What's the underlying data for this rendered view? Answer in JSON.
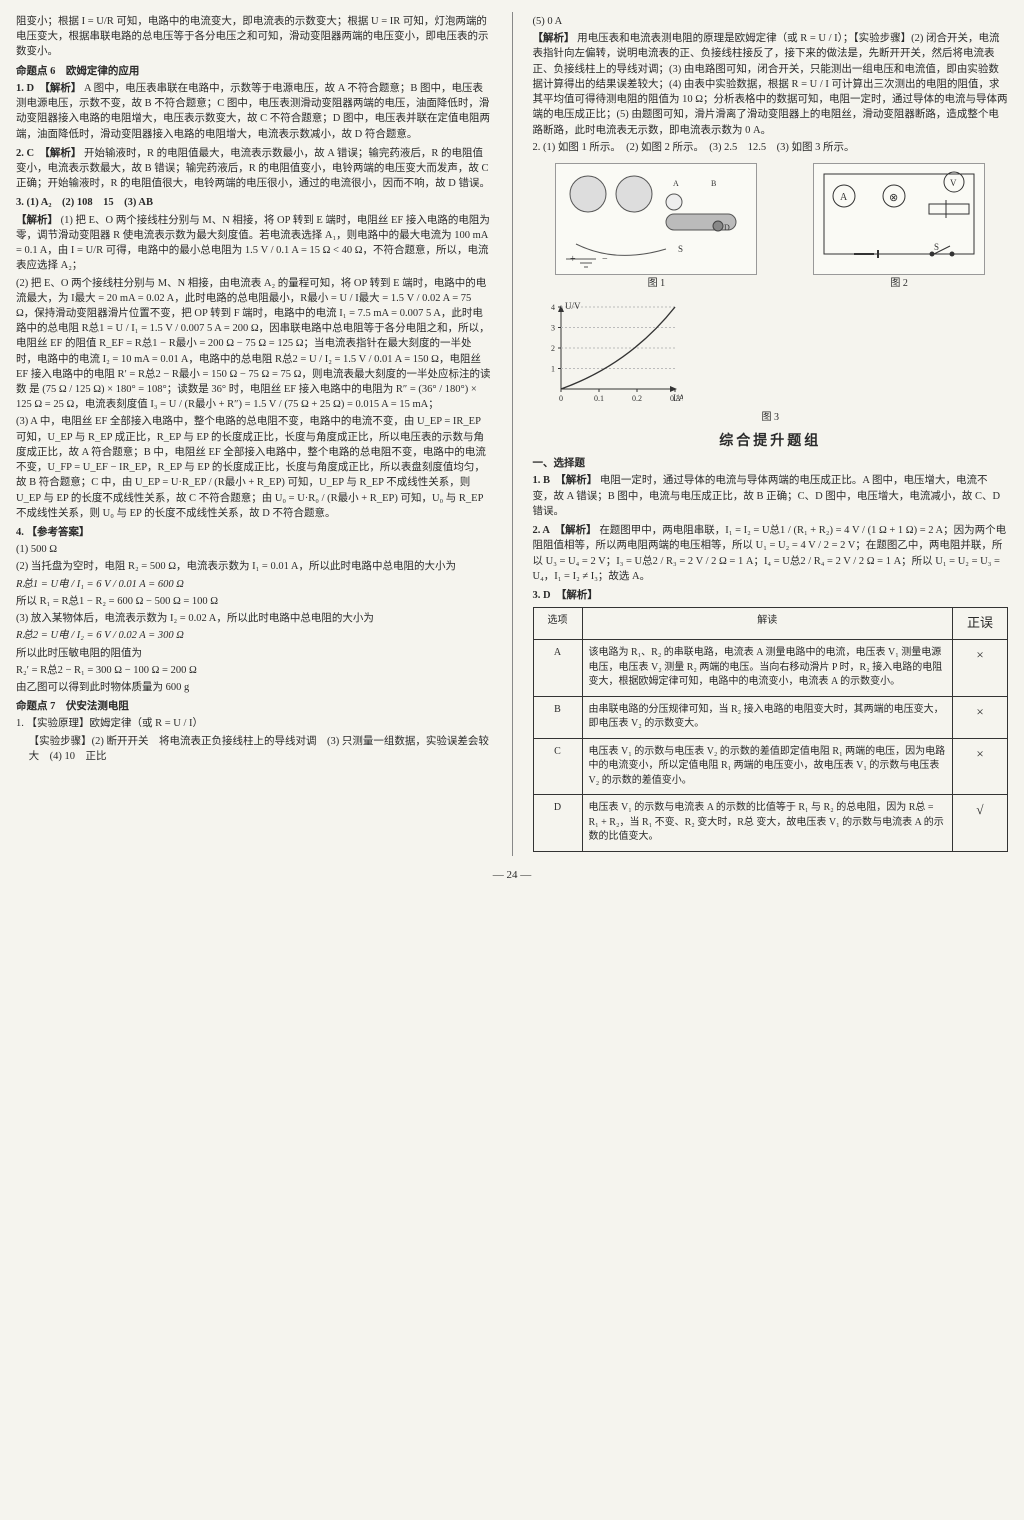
{
  "left": {
    "intro": "阻变小；根据 I = U/R 可知，电路中的电流变大，即电流表的示数变大；根据 U = IR 可知，灯泡两端的电压变大，根据串联电路的总电压等于各分电压之和可知，滑动变阻器两端的电压变小，即电压表的示数变小。",
    "topic6": "命题点 6　欧姆定律的应用",
    "q1_head": "1. D　【解析】",
    "q1_body": "A 图中，电压表串联在电路中，示数等于电源电压，故 A 不符合题意；B 图中，电压表测电源电压，示数不变，故 B 不符合题意；C 图中，电压表测滑动变阻器两端的电压，油面降低时，滑动变阻器接入电路的电阻增大，电压表示数变大，故 C 不符合题意；D 图中，电压表并联在定值电阻两端，油面降低时，滑动变阻器接入电路的电阻增大，电流表示数减小，故 D 符合题意。",
    "q2_head": "2. C　【解析】",
    "q2_body": "开始输液时，R 的电阻值最大，电流表示数最小，故 A 错误；输完药液后，R 的电阻值变小，电流表示数最大，故 B 错误；输完药液后，R 的电阻值变小，电铃两端的电压变大而发声，故 C 正确；开始输液时，R 的电阻值很大，电铃两端的电压很小，通过的电流很小，因而不响，故 D 错误。",
    "q3_head": "3. (1) A₂　(2) 108　15　(3) AB",
    "q3_expl_label": "【解析】",
    "q3_p1": "(1) 把 E、O 两个接线柱分别与 M、N 相接，将 OP 转到 E 端时，电阻丝 EF 接入电路的电阻为零，调节滑动变阻器 R 使电流表示数为最大刻度值。若电流表选择 A₁，则电路中的最大电流为 100 mA = 0.1 A，由 I = U/R 可得，电路中的最小总电阻为 1.5 V / 0.1 A = 15 Ω < 40 Ω，不符合题意，所以，电流表应选择 A₂；",
    "q3_p2": "(2) 把 E、O 两个接线柱分别与 M、N 相接，由电流表 A₂ 的量程可知，将 OP 转到 E 端时，电路中的电流最大，为 I最大 = 20 mA = 0.02 A，此时电路的总电阻最小，R最小 = U / I最大 = 1.5 V / 0.02 A = 75 Ω，保持滑动变阻器滑片位置不变，把 OP 转到 F 端时，电路中的电流 I₁ = 7.5 mA = 0.007 5 A，此时电路中的总电阻 R总1 = U / I₁ = 1.5 V / 0.007 5 A = 200 Ω，因串联电路中总电阻等于各分电阻之和，所以，电阻丝 EF 的阻值 R_EF = R总1 − R最小 = 200 Ω − 75 Ω = 125 Ω；当电流表指针在最大刻度的一半处时，电路中的电流 I₂ = 10 mA = 0.01 A，电路中的总电阻 R总2 = U / I₂ = 1.5 V / 0.01 A = 150 Ω，电阻丝 EF 接入电路中的电阻 R′ = R总2 − R最小 = 150 Ω − 75 Ω = 75 Ω，则电流表最大刻度的一半处应标注的读数 是 (75 Ω / 125 Ω) × 180° = 108°；读数是 36° 时，电阻丝 EF 接入电路中的电阻为 R″ = (36° / 180°) × 125 Ω = 25 Ω，电流表刻度值 I₃ = U / (R最小 + R″) = 1.5 V / (75 Ω + 25 Ω) = 0.015 A = 15 mA；",
    "q3_p3": "(3) A 中，电阻丝 EF 全部接入电路中，整个电路的总电阻不变，电路中的电流不变，由 U_EP = IR_EP 可知，U_EP 与 R_EP 成正比，R_EP 与 EP 的长度成正比，长度与角度成正比，所以电压表的示数与角度成正比，故 A 符合题意；B 中，电阻丝 EF 全部接入电路中，整个电路的总电阻不变，电路中的电流不变，U_FP = U_EF − IR_EP，R_EP 与 EP 的长度成正比，长度与角度成正比，所以表盘刻度值均匀，故 B 符合题意；C 中，由 U_EP = U·R_EP / (R最小 + R_EP) 可知，U_EP 与 R_EP 不成线性关系，则 U_EP 与 EP 的长度不成线性关系，故 C 不符合题意；由 U₀ = U·R₀ / (R最小 + R_EP) 可知，U₀ 与 R_EP 不成线性关系，则 U₀ 与 EP 的长度不成线性关系，故 D 不符合题意。",
    "q4_head": "4. 【参考答案】",
    "q4_1": "(1) 500 Ω",
    "q4_2": "(2) 当托盘为空时，电阻 R₂ = 500 Ω，电流表示数为 I₁ = 0.01 A，所以此时电路中总电阻的大小为",
    "q4_2f": "R总1 = U电 / I₁ = 6 V / 0.01 A = 600 Ω",
    "q4_2b": "所以 R₁ = R总1 − R₂ = 600 Ω − 500 Ω = 100 Ω",
    "q4_3": "(3) 放入某物体后，电流表示数为 I₂ = 0.02 A，所以此时电路中总电阻的大小为",
    "q4_3f": "R总2 = U电 / I₂ = 6 V / 0.02 A = 300 Ω",
    "q4_3b": "所以此时压敏电阻的阻值为",
    "q4_3c": "R₂′ = R总2 − R₁ = 300 Ω − 100 Ω = 200 Ω",
    "q4_3d": "由乙图可以得到此时物体质量为 600 g",
    "topic7": "命题点 7　伏安法测电阻",
    "q7_1": "1. 【实验原理】欧姆定律（或 R = U / I）",
    "q7_2": "【实验步骤】(2) 断开开关　将电流表正负接线柱上的导线对调　(3) 只测量一组数据，实验误差会较大　(4) 10　正比"
  },
  "right": {
    "r0": "(5) 0 A",
    "r_expl_label": "【解析】",
    "r_expl": "用电压表和电流表测电阻的原理是欧姆定律（或 R = U / I）；【实验步骤】(2) 闭合开关，电流表指针向左偏转，说明电流表的正、负接线柱接反了，接下来的做法是，先断开开关，然后将电流表正、负接线柱上的导线对调；(3) 由电路图可知，闭合开关，只能测出一组电压和电流值，即由实验数据计算得出的结果误差较大；(4) 由表中实验数据，根据 R = U / I 可计算出三次测出的电阻的阻值，求其平均值可得待测电阻的阻值为 10 Ω；分析表格中的数据可知，电阻一定时，通过导体的电流与导体两端的电压成正比；(5) 由题图可知，滑片滑离了滑动变阻器上的电阻丝，滑动变阻器断路，造成整个电路断路，此时电流表无示数，即电流表示数为 0 A。",
    "q2": "2. (1) 如图 1 所示。　(2) 如图 2 所示。　(3) 2.5　12.5　(3) 如图 3 所示。",
    "fig1_cap": "图 1",
    "fig2_cap": "图 2",
    "fig3_cap": "图 3",
    "chart": {
      "type": "line",
      "xlabel": "I/A",
      "ylabel": "U/V",
      "xticks": [
        0,
        0.1,
        0.2,
        0.3
      ],
      "yticks": [
        0,
        1,
        2,
        3,
        4
      ],
      "points_x": [
        0,
        0.1,
        0.2,
        0.3
      ],
      "points_y": [
        0,
        1.0,
        2.2,
        4.0
      ],
      "line_color": "#333333",
      "axis_color": "#333333",
      "bg_color": "#f5f4ee",
      "fontsize": 8
    },
    "comp_title": "综合提升题组",
    "sec_choice": "一、选择题",
    "c1_head": "1. B　【解析】",
    "c1_body": "电阻一定时，通过导体的电流与导体两端的电压成正比。A 图中，电压增大，电流不变，故 A 错误；B 图中，电流与电压成正比，故 B 正确；C、D 图中，电压增大，电流减小，故 C、D 错误。",
    "c2_head": "2. A　【解析】",
    "c2_body": "在题图甲中，两电阻串联，I₁ = I₂ = U总1 / (R₁ + R₂) = 4 V / (1 Ω + 1 Ω) = 2 A；因为两个电阻阻值相等，所以两电阻两端的电压相等，所以 U₁ = U₂ = 4 V / 2 = 2 V；在题图乙中，两电阻并联，所以 U₃ = U₄ = 2 V；I₃ = U总2 / R₃ = 2 V / 2 Ω = 1 A；I₄ = U总2 / R₄ = 2 V / 2 Ω = 1 A；所以 U₁ = U₂ = U₃ = U₄，I₁ = I₂ ≠ I₃；故选 A。",
    "c3_head": "3. D　【解析】",
    "table": {
      "headers": [
        "选项",
        "解读",
        "正误"
      ],
      "rows": [
        {
          "opt": "A",
          "text": "该电路为 R₁、R₂ 的串联电路，电流表 A 测量电路中的电流，电压表 V₁ 测量电源电压，电压表 V₂ 测量 R₂ 两端的电压。当向右移动滑片 P 时，R₂ 接入电路的电阻变大，根据欧姆定律可知，电路中的电流变小，电流表 A 的示数变小。",
          "mark": "×"
        },
        {
          "opt": "B",
          "text": "由串联电路的分压规律可知，当 R₂ 接入电路的电阻变大时，其两端的电压变大，即电压表 V₂ 的示数变大。",
          "mark": "×"
        },
        {
          "opt": "C",
          "text": "电压表 V₁ 的示数与电压表 V₂ 的示数的差值即定值电阻 R₁ 两端的电压，因为电路中的电流变小，所以定值电阻 R₁ 两端的电压变小，故电压表 V₁ 的示数与电压表 V₂ 的示数的差值变小。",
          "mark": "×"
        },
        {
          "opt": "D",
          "text": "电压表 V₁ 的示数与电流表 A 的示数的比值等于 R₁ 与 R₂ 的总电阻，因为 R总 = R₁ + R₂，当 R₁ 不变、R₂ 变大时，R总 变大，故电压表 V₁ 的示数与电流表 A 的示数的比值变大。",
          "mark": "√"
        }
      ]
    }
  },
  "page_num": "— 24 —"
}
